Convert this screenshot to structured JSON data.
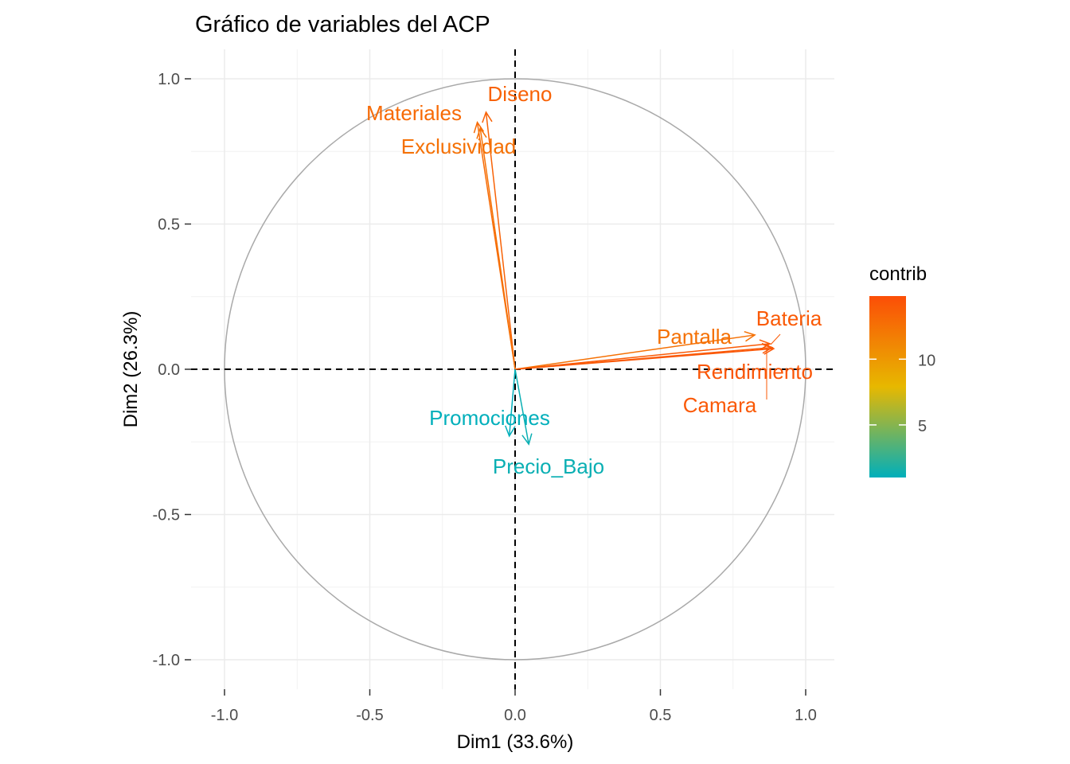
{
  "chart_data": {
    "type": "scatter",
    "subtype": "pca-variable-correlation-circle",
    "title": "Gráfico de variables del ACP",
    "xlabel": "Dim1 (33.6%)",
    "ylabel": "Dim2 (26.3%)",
    "xlim": [
      -1.1,
      1.1
    ],
    "ylim": [
      -1.1,
      1.1
    ],
    "xticks": [
      -1.0,
      -0.5,
      0.0,
      0.5,
      1.0
    ],
    "yticks": [
      -1.0,
      -0.5,
      0.0,
      0.5,
      1.0
    ],
    "xtick_labels": [
      "-1.0",
      "-0.5",
      "0.0",
      "0.5",
      "1.0"
    ],
    "ytick_labels": [
      "-1.0",
      "-0.5",
      "0.0",
      "0.5",
      "1.0"
    ],
    "grid": true,
    "legend": {
      "title": "contrib",
      "placement": "right",
      "range": [
        1.0,
        14.8
      ],
      "ticks": [
        5,
        10
      ],
      "tick_labels": [
        "5",
        "10"
      ],
      "colors": [
        "#00AFBB",
        "#E7B800",
        "#FC4E07"
      ]
    },
    "variables": [
      {
        "name": "Diseno",
        "x": -0.1,
        "y": 0.885,
        "contrib": 13.5
      },
      {
        "name": "Materiales",
        "x": -0.13,
        "y": 0.85,
        "contrib": 13.0
      },
      {
        "name": "Exclusividad",
        "x": -0.12,
        "y": 0.83,
        "contrib": 12.5
      },
      {
        "name": "Bateria",
        "x": 0.877,
        "y": 0.088,
        "contrib": 14.0
      },
      {
        "name": "Pantalla",
        "x": 0.825,
        "y": 0.118,
        "contrib": 12.5
      },
      {
        "name": "Rendimiento",
        "x": 0.89,
        "y": 0.071,
        "contrib": 14.3
      },
      {
        "name": "Camara",
        "x": 0.885,
        "y": 0.075,
        "contrib": 14.1
      },
      {
        "name": "Promociones",
        "x": -0.02,
        "y": -0.23,
        "contrib": 1.0
      },
      {
        "name": "Precio_Bajo",
        "x": 0.047,
        "y": -0.258,
        "contrib": 1.3
      }
    ]
  }
}
